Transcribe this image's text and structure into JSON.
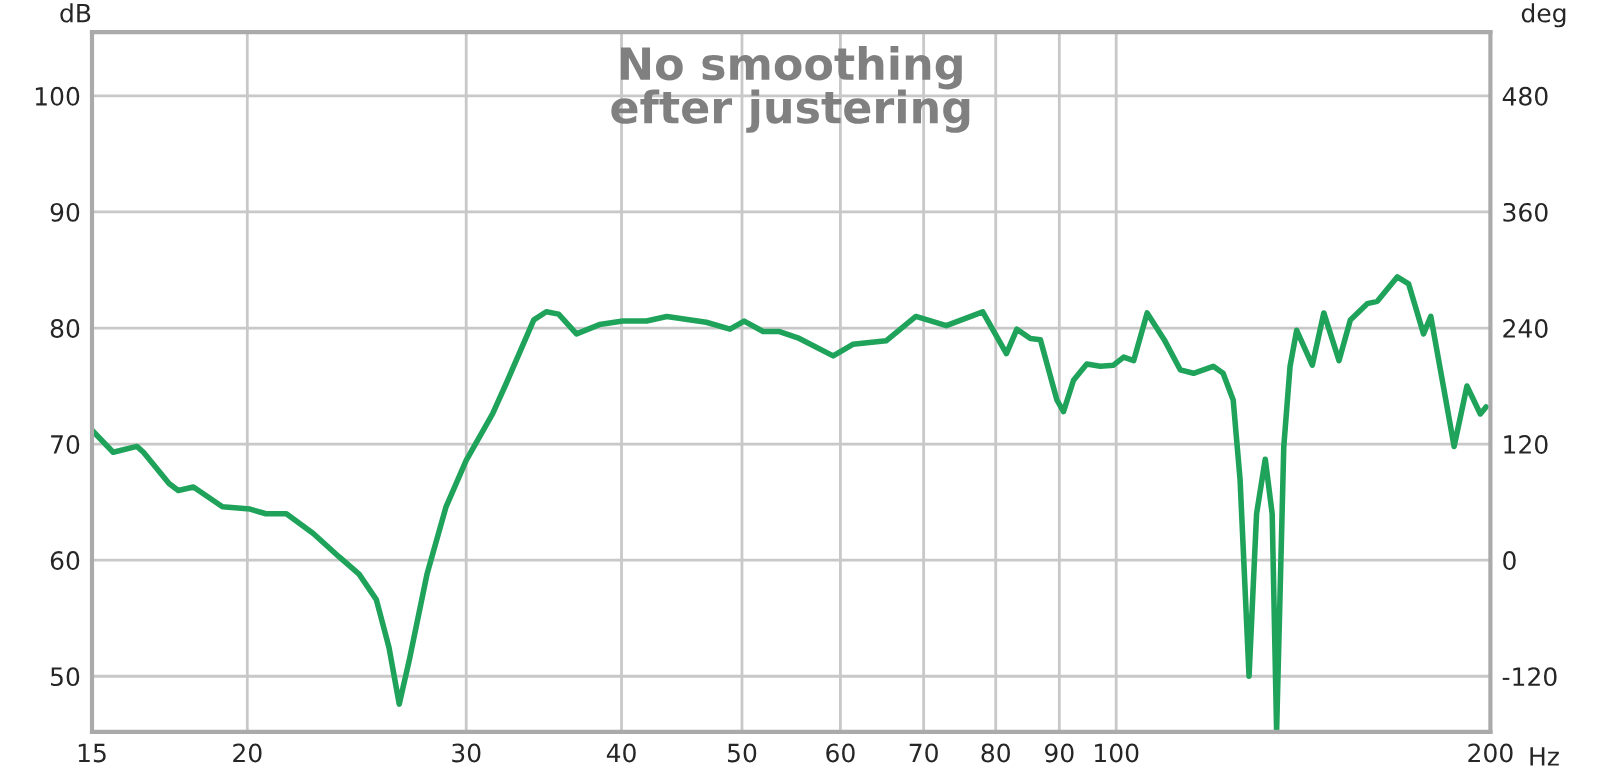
{
  "chart_data": {
    "type": "line",
    "ylabel": "dB",
    "y2label": "deg",
    "xlabel": "Hz",
    "annotations": [
      "No smoothing\nefter justering"
    ],
    "log": "x",
    "grid": true,
    "line_style": "solid",
    "xlim": [
      15,
      200
    ],
    "xticks": [
      15,
      20,
      30,
      40,
      50,
      60,
      70,
      80,
      90,
      100,
      200
    ],
    "ylim": [
      45.2,
      105.5
    ],
    "yticks": [
      50,
      60,
      70,
      80,
      90,
      100
    ],
    "y2lim": [
      -177.6,
      546
    ],
    "y2ticks": [
      -120,
      0,
      120,
      240,
      360,
      480
    ],
    "x": [
      15,
      15.6,
      16.3,
      16.5,
      17.3,
      17.6,
      18.1,
      19.1,
      20.1,
      20.7,
      21.5,
      22.6,
      23.7,
      24.6,
      25.4,
      26.0,
      26.5,
      27.0,
      27.9,
      28.9,
      30.0,
      31.5,
      32.3,
      34.0,
      34.8,
      35.6,
      36.8,
      38.4,
      40.1,
      41.9,
      43.5,
      46.8,
      48.9,
      50.2,
      52.0,
      53.6,
      55.6,
      59.2,
      61.4,
      65.3,
      69.0,
      73.0,
      78.1,
      81.6,
      83.2,
      85.3,
      86.9,
      89.6,
      90.7,
      92.4,
      94.7,
      97.1,
      99.5,
      101.4,
      103.3,
      105.9,
      109.3,
      112.6,
      115.4,
      119.7,
      121.9,
      124.2,
      125.8,
      127.9,
      129.7,
      131.8,
      133.5,
      134.6,
      136.4,
      138.0,
      139.7,
      143.8,
      146.9,
      151.1,
      154.3,
      159.2,
      162.2,
      168.3,
      171.9,
      176.7,
      179.1,
      183.3,
      187.0,
      191.5,
      196.3,
      198.4
    ],
    "series": [
      {
        "color": "#1fa35a",
        "values": [
          71.2,
          69.3,
          69.8,
          69.3,
          66.6,
          66.0,
          66.3,
          64.6,
          64.4,
          64.0,
          64.0,
          62.3,
          60.3,
          58.8,
          56.6,
          52.5,
          47.6,
          51.4,
          58.8,
          64.6,
          68.6,
          72.6,
          75.2,
          80.7,
          81.4,
          81.2,
          79.5,
          80.3,
          80.6,
          80.6,
          81.0,
          80.5,
          79.9,
          80.6,
          79.7,
          79.7,
          79.1,
          77.6,
          78.6,
          78.9,
          81.0,
          80.2,
          81.4,
          77.8,
          79.9,
          79.1,
          79.0,
          73.8,
          72.8,
          75.5,
          76.9,
          76.7,
          76.8,
          77.5,
          77.2,
          81.3,
          79.0,
          76.4,
          76.1,
          76.7,
          76.1,
          73.8,
          66.9,
          50.0,
          64.0,
          68.7,
          64.0,
          45.3,
          69.8,
          76.7,
          79.8,
          76.8,
          81.3,
          77.2,
          80.7,
          82.1,
          82.3,
          84.4,
          83.8,
          79.5,
          81.0,
          75.0,
          69.8,
          75.0,
          72.6,
          73.2
        ]
      }
    ]
  }
}
